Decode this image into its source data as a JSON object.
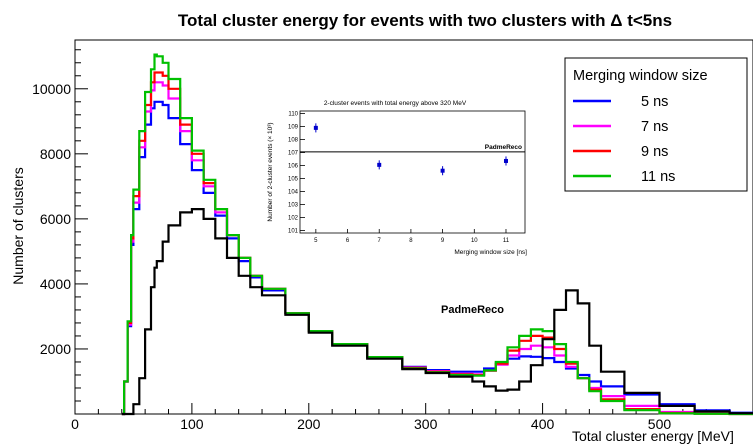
{
  "chart_data": [
    {
      "type": "line",
      "title": "Total cluster energy for events with two clusters with  Δ t<5ns",
      "xlabel": "Total cluster energy [MeV]",
      "ylabel": "Number of clusters",
      "xlim": [
        0,
        580
      ],
      "ylim": [
        0,
        11500
      ],
      "x_ticks": [
        0,
        100,
        200,
        300,
        400,
        500
      ],
      "y_ticks": [
        2000,
        4000,
        6000,
        8000,
        10000
      ],
      "legend_title": "Merging window size",
      "legend_position": "top-right",
      "annotation": "PadmeReco",
      "x": [
        40,
        42,
        45,
        48,
        50,
        55,
        60,
        65,
        68,
        70,
        75,
        80,
        90,
        100,
        110,
        120,
        130,
        140,
        150,
        160,
        180,
        200,
        220,
        250,
        280,
        300,
        320,
        340,
        350,
        360,
        370,
        380,
        390,
        400,
        410,
        420,
        430,
        440,
        450,
        470,
        500,
        530,
        560,
        580
      ],
      "series": [
        {
          "name": "5 ns",
          "color": "#0000ff",
          "values": [
            0,
            1000,
            2700,
            5200,
            6300,
            7900,
            8900,
            9400,
            9600,
            9600,
            9500,
            9100,
            8300,
            7500,
            6800,
            6100,
            5400,
            4700,
            4200,
            3800,
            3100,
            2550,
            2150,
            1750,
            1450,
            1350,
            1300,
            1300,
            1400,
            1550,
            1700,
            1770,
            1760,
            1720,
            1600,
            1400,
            1200,
            1000,
            850,
            600,
            300,
            110,
            40,
            10
          ]
        },
        {
          "name": "7 ns",
          "color": "#ff00ff",
          "values": [
            0,
            1000,
            2750,
            5300,
            6500,
            8200,
            9300,
            9950,
            10200,
            10200,
            10100,
            9700,
            8700,
            7800,
            7000,
            6200,
            5500,
            4800,
            4250,
            3850,
            3100,
            2550,
            2150,
            1750,
            1430,
            1320,
            1240,
            1220,
            1330,
            1520,
            1800,
            2000,
            2100,
            2050,
            1800,
            1450,
            1100,
            800,
            550,
            250,
            60,
            15,
            5,
            0
          ]
        },
        {
          "name": "9 ns",
          "color": "#ff0000",
          "values": [
            0,
            1000,
            2800,
            5400,
            6700,
            8400,
            9500,
            10200,
            10500,
            10500,
            10400,
            10000,
            8900,
            8000,
            7100,
            6300,
            5500,
            4800,
            4250,
            3850,
            3100,
            2550,
            2150,
            1750,
            1420,
            1300,
            1220,
            1200,
            1330,
            1550,
            1950,
            2250,
            2400,
            2350,
            2000,
            1550,
            1100,
            750,
            450,
            150,
            30,
            5,
            0,
            0
          ]
        },
        {
          "name": "11 ns",
          "color": "#00c000",
          "values": [
            0,
            1000,
            2850,
            5500,
            6900,
            8700,
            9900,
            10600,
            11050,
            11000,
            10800,
            10300,
            9100,
            8100,
            7200,
            6300,
            5500,
            4800,
            4250,
            3850,
            3100,
            2550,
            2150,
            1750,
            1400,
            1280,
            1200,
            1180,
            1340,
            1600,
            2050,
            2400,
            2600,
            2550,
            2150,
            1600,
            1100,
            700,
            400,
            120,
            20,
            5,
            0,
            0
          ]
        },
        {
          "name": "PadmeReco",
          "color": "#000000",
          "values": [
            0,
            0,
            0,
            0,
            300,
            1100,
            2600,
            3900,
            4500,
            4700,
            5300,
            5800,
            6200,
            6300,
            6000,
            5400,
            4800,
            4250,
            3900,
            3650,
            3050,
            2500,
            2100,
            1700,
            1380,
            1260,
            1150,
            1000,
            850,
            720,
            750,
            1000,
            1500,
            2300,
            3200,
            3800,
            3400,
            2100,
            1300,
            650,
            250,
            80,
            25,
            10
          ]
        }
      ]
    },
    {
      "type": "scatter",
      "title": "2-cluster events with total energy above 320 MeV",
      "xlabel": "Merging window size [ns]",
      "ylabel": "Number of 2-cluster events (× 10³)",
      "xlim": [
        4.5,
        11.6
      ],
      "ylim": [
        100.8,
        110.2
      ],
      "x_ticks": [
        5,
        6,
        7,
        8,
        9,
        10,
        11
      ],
      "y_ticks": [
        101,
        102,
        103,
        104,
        105,
        106,
        107,
        108,
        109,
        110
      ],
      "reference_line": 107.05,
      "reference_label": "PadmeReco",
      "points": [
        {
          "x": 5,
          "y": 108.9,
          "err": 0.35
        },
        {
          "x": 7,
          "y": 106.05,
          "err": 0.35
        },
        {
          "x": 9,
          "y": 105.6,
          "err": 0.35
        },
        {
          "x": 11,
          "y": 106.35,
          "err": 0.35
        }
      ],
      "marker_color": "#0000cc"
    }
  ]
}
